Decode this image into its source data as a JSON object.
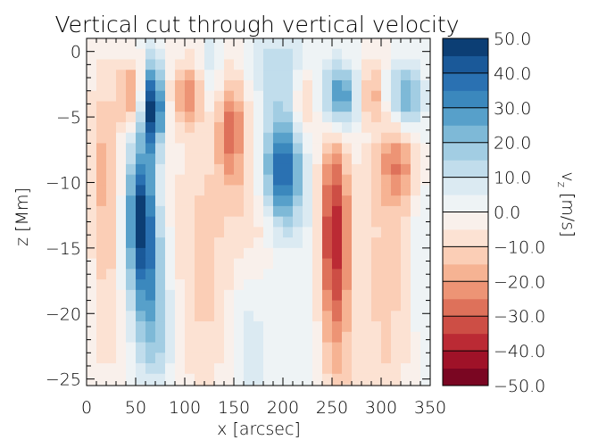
{
  "chart_data": {
    "type": "heatmap",
    "title": "Vertical cut through vertical velocity",
    "xlabel": "x [arcsec]",
    "ylabel": "z [Mm]",
    "xlim": [
      0,
      350
    ],
    "ylim": [
      -25.5,
      1
    ],
    "x_ticks": [
      0,
      50,
      100,
      150,
      200,
      250,
      300,
      350
    ],
    "x_tick_labels": [
      "0",
      "50",
      "100",
      "150",
      "200",
      "250",
      "300",
      "350"
    ],
    "y_ticks": [
      0,
      -5,
      -10,
      -15,
      -20,
      -25
    ],
    "y_tick_labels": [
      "0",
      "−5",
      "−10",
      "−15",
      "−20",
      "−25"
    ],
    "colorbar": {
      "label_main": "v",
      "label_sub": "z",
      "label_unit": "[m/s]",
      "range": [
        -50,
        50
      ],
      "ticks": [
        50,
        40,
        30,
        20,
        10,
        0,
        -10,
        -20,
        -30,
        -40,
        -50
      ],
      "tick_labels": [
        "50.0",
        "40.0",
        "30.0",
        "20.0",
        "10.0",
        "0.0",
        "−10.0",
        "−20.0",
        "−30.0",
        "−40.0",
        "−50.0"
      ],
      "levels": 20,
      "colors": [
        "#67001f",
        "#b2182b",
        "#d6604d",
        "#f4a582",
        "#fddbc7",
        "#f7f7f7",
        "#d1e5f0",
        "#92c5de",
        "#4393c3",
        "#2166ac",
        "#053061"
      ]
    },
    "grid_x_step": 10,
    "grid_z_step": 0.8,
    "features": [
      {
        "x": 45,
        "z": -3.2,
        "v": -22,
        "sx": 9,
        "sz": 1.7
      },
      {
        "x": 68,
        "z": -4.2,
        "v": 52,
        "sx": 7,
        "sz": 2.3
      },
      {
        "x": 102,
        "z": -3.2,
        "v": -22,
        "sx": 11,
        "sz": 1.6
      },
      {
        "x": 128,
        "z": -0.8,
        "v": 12,
        "sx": 7,
        "sz": 2.5
      },
      {
        "x": 148,
        "z": -6,
        "v": -26,
        "sx": 11,
        "sz": 3
      },
      {
        "x": 200,
        "z": -9,
        "v": 42,
        "sx": 14,
        "sz": 3
      },
      {
        "x": 196,
        "z": -1.2,
        "v": 13,
        "sx": 22,
        "sz": 2
      },
      {
        "x": 222,
        "z": -4,
        "v": -15,
        "sx": 8,
        "sz": 2
      },
      {
        "x": 258,
        "z": -3.5,
        "v": 34,
        "sx": 12,
        "sz": 1.8
      },
      {
        "x": 252,
        "z": -13,
        "v": -30,
        "sx": 11,
        "sz": 5
      },
      {
        "x": 255,
        "z": -20,
        "v": -15,
        "sx": 13,
        "sz": 7
      },
      {
        "x": 290,
        "z": -3,
        "v": -18,
        "sx": 7,
        "sz": 1.5
      },
      {
        "x": 325,
        "z": -3.5,
        "v": 28,
        "sx": 12,
        "sz": 1.8
      },
      {
        "x": 318,
        "z": -8.5,
        "v": -20,
        "sx": 15,
        "sz": 2.5
      },
      {
        "x": 55,
        "z": -12,
        "v": 40,
        "sx": 10,
        "sz": 4
      },
      {
        "x": 64,
        "z": -17,
        "v": 22,
        "sx": 13,
        "sz": 4
      },
      {
        "x": 72,
        "z": -22,
        "v": 12,
        "sx": 14,
        "sz": 3
      },
      {
        "x": 18,
        "z": -8,
        "v": -14,
        "sx": 12,
        "sz": 5
      },
      {
        "x": 20,
        "z": -18,
        "v": -9,
        "sx": 10,
        "sz": 6
      },
      {
        "x": 120,
        "z": -16,
        "v": -12,
        "sx": 25,
        "sz": 8
      },
      {
        "x": 165,
        "z": -22,
        "v": 8,
        "sx": 15,
        "sz": 6
      },
      {
        "x": 170,
        "z": -13,
        "v": -10,
        "sx": 14,
        "sz": 3
      },
      {
        "x": 305,
        "z": -18,
        "v": -12,
        "sx": 18,
        "sz": 9
      },
      {
        "x": 340,
        "z": -15,
        "v": 6,
        "sx": 8,
        "sz": 6
      },
      {
        "x": 225,
        "z": -18,
        "v": 6,
        "sx": 8,
        "sz": 5
      }
    ]
  }
}
